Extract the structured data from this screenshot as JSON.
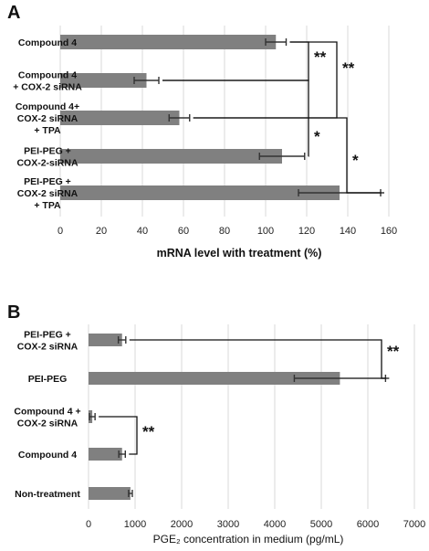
{
  "chart_data": [
    {
      "type": "bar",
      "orientation": "horizontal",
      "panel": "A",
      "xlabel": "mRNA level with treatment (%)",
      "xlim": [
        0,
        160
      ],
      "xticks": [
        0,
        20,
        40,
        60,
        80,
        100,
        120,
        140,
        160
      ],
      "grid": true,
      "categories": [
        [
          "Compound 4"
        ],
        [
          "Compound 4",
          "+ COX-2 siRNA"
        ],
        [
          "Compound 4+",
          "COX-2 siRNA",
          "+ TPA"
        ],
        [
          "PEI-PEG +",
          "COX-2-siRNA"
        ],
        [
          "PEI-PEG +",
          "COX-2 siRNA",
          "+ TPA"
        ]
      ],
      "values": [
        105,
        42,
        58,
        108,
        136
      ],
      "errors": [
        5,
        6,
        5,
        11,
        20
      ],
      "brackets": [
        {
          "from": 0,
          "to": 1,
          "label": "**"
        },
        {
          "from": 0,
          "to": 2,
          "label": "**"
        },
        {
          "from": 1,
          "to": 3,
          "label": "*"
        },
        {
          "from": 2,
          "to": 4,
          "label": "*"
        }
      ]
    },
    {
      "type": "bar",
      "orientation": "horizontal",
      "panel": "B",
      "xlabel": "PGE₂ concentration in medium (pg/mL)",
      "xlim": [
        0,
        7000
      ],
      "xticks": [
        0,
        1000,
        2000,
        3000,
        4000,
        5000,
        6000,
        7000
      ],
      "grid": true,
      "categories": [
        [
          "PEI-PEG +",
          "COX-2 siRNA"
        ],
        [
          "PEI-PEG"
        ],
        [
          "Compound 4 +",
          "COX-2 siRNA"
        ],
        [
          "Compound 4"
        ],
        [
          "Non-treatment"
        ]
      ],
      "values": [
        720,
        5400,
        80,
        720,
        900
      ],
      "errors": [
        80,
        980,
        60,
        70,
        40
      ],
      "brackets": [
        {
          "from": 0,
          "to": 1,
          "label": "**"
        },
        {
          "from": 2,
          "to": 3,
          "label": "**"
        }
      ]
    }
  ]
}
